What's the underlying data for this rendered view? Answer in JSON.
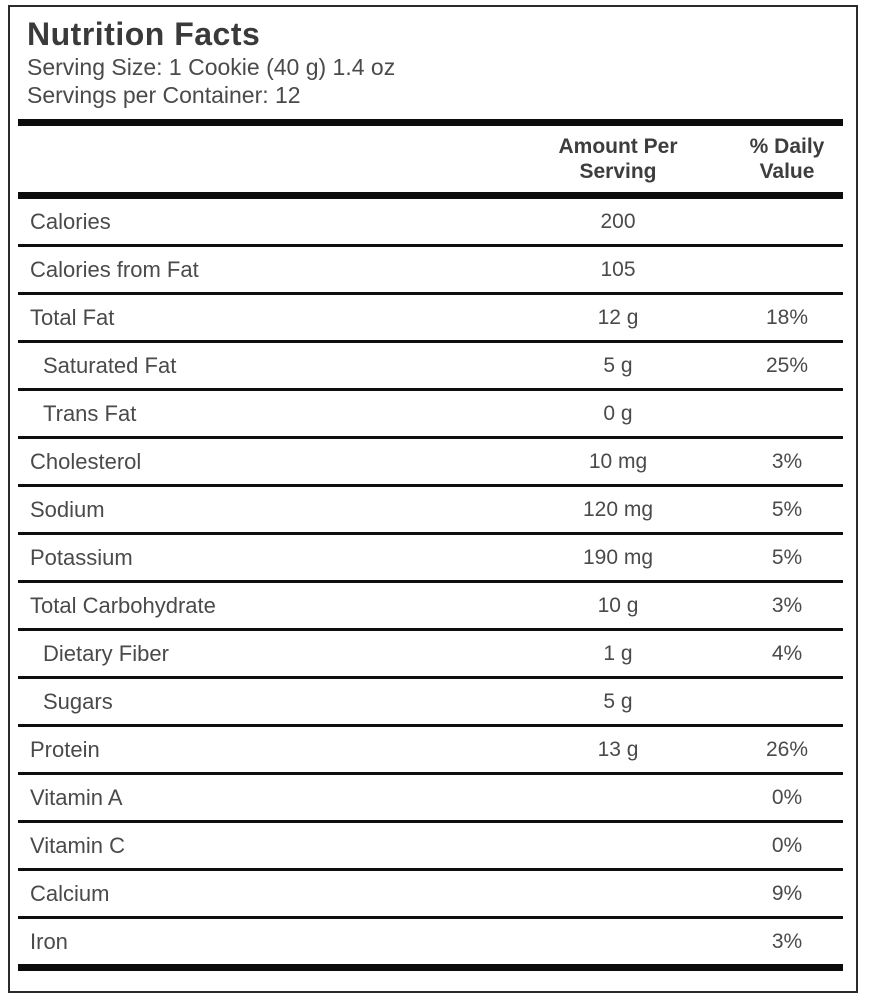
{
  "label": {
    "title": "Nutrition Facts",
    "serving_size": "Serving Size: 1 Cookie (40 g) 1.4 oz",
    "servings_per_container": "Servings per Container: 12",
    "columns": {
      "amount_line1": "Amount Per",
      "amount_line2": "Serving",
      "dv_line1": "% Daily",
      "dv_line2": "Value"
    },
    "rows": [
      {
        "name": "Calories",
        "amount": "200",
        "dv": "",
        "indent": false
      },
      {
        "name": "Calories from Fat",
        "amount": "105",
        "dv": "",
        "indent": false
      },
      {
        "name": "Total Fat",
        "amount": "12 g",
        "dv": "18%",
        "indent": false
      },
      {
        "name": "Saturated Fat",
        "amount": "5 g",
        "dv": "25%",
        "indent": true
      },
      {
        "name": "Trans Fat",
        "amount": "0 g",
        "dv": "",
        "indent": true
      },
      {
        "name": "Cholesterol",
        "amount": "10 mg",
        "dv": "3%",
        "indent": false
      },
      {
        "name": "Sodium",
        "amount": "120 mg",
        "dv": "5%",
        "indent": false
      },
      {
        "name": "Potassium",
        "amount": "190 mg",
        "dv": "5%",
        "indent": false
      },
      {
        "name": "Total Carbohydrate",
        "amount": "10 g",
        "dv": "3%",
        "indent": false
      },
      {
        "name": "Dietary Fiber",
        "amount": "1 g",
        "dv": "4%",
        "indent": true
      },
      {
        "name": "Sugars",
        "amount": "5 g",
        "dv": "",
        "indent": true
      },
      {
        "name": "Protein",
        "amount": "13 g",
        "dv": "26%",
        "indent": false
      },
      {
        "name": "Vitamin A",
        "amount": "",
        "dv": "0%",
        "indent": false
      },
      {
        "name": "Vitamin C",
        "amount": "",
        "dv": "0%",
        "indent": false
      },
      {
        "name": "Calcium",
        "amount": "",
        "dv": "9%",
        "indent": false
      },
      {
        "name": "Iron",
        "amount": "",
        "dv": "3%",
        "indent": false
      }
    ],
    "colors": {
      "background": "#ffffff",
      "border": "#2b2b2b",
      "bar": "#0c0c0c",
      "title_text": "#3a3a3a",
      "body_text": "#4a4a4a"
    }
  }
}
